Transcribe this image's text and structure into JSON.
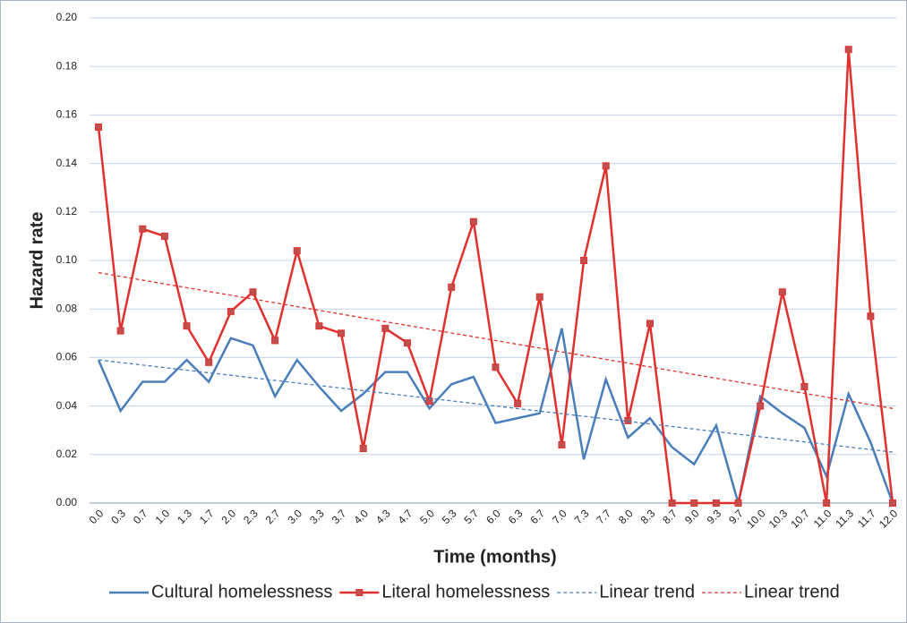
{
  "chart_data": {
    "type": "line",
    "x_label": "Time (months)",
    "y_label": "Hazard rate",
    "categories": [
      "0.0",
      "0.3",
      "0.7",
      "1.0",
      "1.3",
      "1.7",
      "2.0",
      "2.3",
      "2.7",
      "3.0",
      "3.3",
      "3.7",
      "4.0",
      "4.3",
      "4.7",
      "5.0",
      "5.3",
      "5.7",
      "6.0",
      "6.3",
      "6.7",
      "7.0",
      "7.3",
      "7.7",
      "8.0",
      "8.3",
      "8.7",
      "9.0",
      "9.3",
      "9.7",
      "10.0",
      "10.3",
      "10.7",
      "11.0",
      "11.3",
      "11.7",
      "12.0"
    ],
    "series": [
      {
        "name": "Cultural homelessness",
        "color": "#4a7ebb",
        "marker": "none",
        "values": [
          0.059,
          0.038,
          0.05,
          0.05,
          0.059,
          0.05,
          0.068,
          0.065,
          0.044,
          0.059,
          0.048,
          0.038,
          0.045,
          0.054,
          0.054,
          0.039,
          0.049,
          0.052,
          0.033,
          0.035,
          0.037,
          0.072,
          0.018,
          0.051,
          0.027,
          0.035,
          0.023,
          0.016,
          0.032,
          0,
          0.044,
          0.037,
          0.031,
          0.011,
          0.045,
          0.025,
          0
        ]
      },
      {
        "name": "Literal homelessness",
        "color": "#e0312f",
        "marker": "square",
        "values": [
          0.155,
          0.071,
          0.113,
          0.11,
          0.073,
          0.058,
          0.079,
          0.087,
          0.067,
          0.104,
          0.073,
          0.07,
          0.0225,
          0.072,
          0.066,
          0.042,
          0.089,
          0.116,
          0.056,
          0.041,
          0.085,
          0.024,
          0.1,
          0.139,
          0.034,
          0.074,
          0,
          0,
          0,
          0,
          0.04,
          0.087,
          0.048,
          0,
          0.187,
          0.077,
          0
        ]
      }
    ],
    "trendlines": [
      {
        "name": "Linear trend",
        "color": "#4a7ebb",
        "values": [
          0.059,
          0.021
        ]
      },
      {
        "name": "Linear trend",
        "color": "#e0312f",
        "values": [
          0.095,
          0.039
        ]
      }
    ],
    "ylim": [
      0,
      0.2
    ],
    "yticks": [
      {
        "value": 0,
        "label": "0.00"
      },
      {
        "value": 0.02,
        "label": "0.02"
      },
      {
        "value": 0.04,
        "label": "0.04"
      },
      {
        "value": 0.06,
        "label": "0.06"
      },
      {
        "value": 0.08,
        "label": "0.08"
      },
      {
        "value": 0.1,
        "label": "0.10"
      },
      {
        "value": 0.12,
        "label": "0.12"
      },
      {
        "value": 0.14,
        "label": "0.14"
      },
      {
        "value": 0.16,
        "label": "0.16"
      },
      {
        "value": 0.18,
        "label": "0.18"
      },
      {
        "value": 0.2,
        "label": "0.20"
      }
    ],
    "grid": true
  }
}
